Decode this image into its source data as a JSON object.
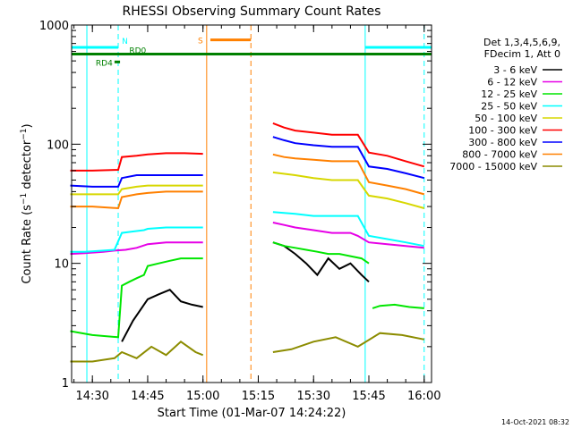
{
  "chart_data": {
    "type": "line",
    "title": "RHESSI Observing Summary Count Rates",
    "xlabel": "Start Time (01-Mar-07 14:24:22)",
    "ylabel_main": "Count Rate (s",
    "ylabel_sup": "−1",
    "ylabel_mid": " detector",
    "ylabel_end": ")",
    "yscale": "log",
    "ylim": [
      1,
      1000
    ],
    "xlim": [
      "14:24:22",
      "16:02:00"
    ],
    "x_ticks": [
      "14:30",
      "14:45",
      "15:00",
      "15:15",
      "15:30",
      "15:45",
      "16:00"
    ],
    "y_ticks": [
      {
        "value": 1,
        "label": "1"
      },
      {
        "value": 10,
        "label": "10"
      },
      {
        "value": 100,
        "label": "100"
      },
      {
        "value": 1000,
        "label": "1000"
      }
    ],
    "legend_header": [
      "Det 1,3,4,5,6,9,",
      "FDecim 1, Att 0"
    ],
    "legend_position": "outside-right",
    "series": [
      {
        "name": "3 - 6 keV",
        "color": "#000000",
        "segments": [
          {
            "x": [
              "14:38",
              "14:41",
              "14:44",
              "14:45",
              "14:48",
              "14:51",
              "14:54",
              "14:57",
              "15:00"
            ],
            "y": [
              2.2,
              3.3,
              4.5,
              5.0,
              5.5,
              6.0,
              4.8,
              4.5,
              4.3
            ]
          },
          {
            "x": [
              "15:19",
              "15:22",
              "15:25",
              "15:28",
              "15:31",
              "15:34",
              "15:37",
              "15:40",
              "15:43",
              "15:45"
            ],
            "y": [
              15,
              14,
              12,
              10,
              8,
              11,
              9,
              10,
              8,
              7
            ]
          }
        ]
      },
      {
        "name": "6 - 12 keV",
        "color": "#e600e6",
        "segments": [
          {
            "x": [
              "14:24",
              "14:28",
              "14:33",
              "14:36",
              "14:39",
              "14:42",
              "14:45",
              "14:50",
              "14:55",
              "15:00"
            ],
            "y": [
              12,
              12.2,
              12.5,
              12.8,
              13,
              13.5,
              14.5,
              15,
              15,
              15
            ]
          },
          {
            "x": [
              "15:19",
              "15:22",
              "15:25",
              "15:30",
              "15:35",
              "15:40",
              "15:42",
              "15:45",
              "15:50",
              "15:55",
              "16:00"
            ],
            "y": [
              22,
              21,
              20,
              19,
              18,
              18,
              17,
              15,
              14.5,
              14,
              13.5
            ]
          }
        ]
      },
      {
        "name": "12 - 25 keV",
        "color": "#00e600",
        "segments": [
          {
            "x": [
              "14:24",
              "14:30",
              "14:37",
              "14:38",
              "14:40",
              "14:42",
              "14:44",
              "14:45",
              "14:48",
              "14:51",
              "14:54",
              "14:57",
              "15:00"
            ],
            "y": [
              2.7,
              2.5,
              2.4,
              6.5,
              7.0,
              7.5,
              8.0,
              9.5,
              10,
              10.5,
              11,
              11,
              11
            ]
          },
          {
            "x": [
              "15:19",
              "15:22",
              "15:25",
              "15:28",
              "15:31",
              "15:34",
              "15:37",
              "15:40",
              "15:43",
              "15:45"
            ],
            "y": [
              15,
              14,
              13.5,
              13,
              12.5,
              12,
              12,
              11.5,
              11,
              10
            ]
          },
          {
            "x": [
              "15:46",
              "15:48",
              "15:52",
              "15:56",
              "16:00"
            ],
            "y": [
              4.2,
              4.4,
              4.5,
              4.3,
              4.2
            ]
          }
        ]
      },
      {
        "name": "25 - 50 keV",
        "color": "#00ffff",
        "segments": [
          {
            "x": [
              "14:24",
              "14:28",
              "14:33",
              "14:36",
              "14:38",
              "14:41",
              "14:44",
              "14:45",
              "14:50",
              "14:55",
              "15:00"
            ],
            "y": [
              12.5,
              12.5,
              12.8,
              13,
              18,
              18.5,
              19,
              19.5,
              20,
              20,
              20
            ]
          },
          {
            "x": [
              "15:19",
              "15:25",
              "15:30",
              "15:35",
              "15:40",
              "15:42",
              "15:45",
              "15:50",
              "15:55",
              "16:00"
            ],
            "y": [
              27,
              26,
              25,
              25,
              25,
              25,
              17,
              16,
              15,
              14
            ]
          }
        ]
      },
      {
        "name": "50 - 100 keV",
        "color": "#d7d700",
        "segments": [
          {
            "x": [
              "14:24",
              "14:30",
              "14:37",
              "14:38",
              "14:42",
              "14:45",
              "14:50",
              "14:55",
              "15:00"
            ],
            "y": [
              38,
              38,
              38,
              42,
              44,
              45,
              45,
              45,
              45
            ]
          },
          {
            "x": [
              "15:19",
              "15:25",
              "15:30",
              "15:35",
              "15:40",
              "15:42",
              "15:45",
              "15:50",
              "15:55",
              "16:00"
            ],
            "y": [
              58,
              55,
              52,
              50,
              50,
              50,
              37,
              35,
              32,
              29
            ]
          }
        ]
      },
      {
        "name": "100 - 300 keV",
        "color": "#ff0000",
        "segments": [
          {
            "x": [
              "14:24",
              "14:30",
              "14:37",
              "14:38",
              "14:42",
              "14:45",
              "14:50",
              "14:55",
              "15:00"
            ],
            "y": [
              60,
              60,
              61,
              78,
              80,
              82,
              84,
              84,
              83
            ]
          },
          {
            "x": [
              "15:19",
              "15:22",
              "15:25",
              "15:30",
              "15:35",
              "15:40",
              "15:42",
              "15:45",
              "15:50",
              "15:55",
              "16:00"
            ],
            "y": [
              150,
              138,
              130,
              125,
              120,
              120,
              120,
              85,
              80,
              72,
              65
            ]
          }
        ]
      },
      {
        "name": "300 - 800 keV",
        "color": "#0000ff",
        "segments": [
          {
            "x": [
              "14:24",
              "14:30",
              "14:37",
              "14:38",
              "14:42",
              "14:45",
              "14:50",
              "14:55",
              "15:00"
            ],
            "y": [
              45,
              44,
              44,
              52,
              55,
              55,
              55,
              55,
              55
            ]
          },
          {
            "x": [
              "15:19",
              "15:22",
              "15:25",
              "15:30",
              "15:35",
              "15:40",
              "15:42",
              "15:45",
              "15:50",
              "15:55",
              "16:00"
            ],
            "y": [
              115,
              108,
              102,
              98,
              95,
              95,
              95,
              65,
              62,
              57,
              52
            ]
          }
        ]
      },
      {
        "name": "800 - 7000 keV",
        "color": "#ff8000",
        "segments": [
          {
            "x": [
              "14:24",
              "14:30",
              "14:37",
              "14:38",
              "14:42",
              "14:45",
              "14:50",
              "14:55",
              "15:00"
            ],
            "y": [
              30,
              30,
              29,
              36,
              38,
              39,
              40,
              40,
              40
            ]
          },
          {
            "x": [
              "15:19",
              "15:22",
              "15:25",
              "15:30",
              "15:35",
              "15:40",
              "15:42",
              "15:45",
              "15:50",
              "15:55",
              "16:00"
            ],
            "y": [
              82,
              78,
              76,
              74,
              72,
              72,
              72,
              48,
              45,
              42,
              38
            ]
          }
        ]
      },
      {
        "name": "7000 - 15000 keV",
        "color": "#8c8c00",
        "segments": [
          {
            "x": [
              "14:24",
              "14:30",
              "14:36",
              "14:38",
              "14:42",
              "14:46",
              "14:50",
              "14:54",
              "14:58",
              "15:00"
            ],
            "y": [
              1.5,
              1.5,
              1.6,
              1.8,
              1.6,
              2.0,
              1.7,
              2.2,
              1.8,
              1.7
            ]
          },
          {
            "x": [
              "15:19",
              "15:24",
              "15:30",
              "15:36",
              "15:42",
              "15:48",
              "15:54",
              "16:00"
            ],
            "y": [
              1.8,
              1.9,
              2.2,
              2.4,
              2.0,
              2.6,
              2.5,
              2.3
            ]
          }
        ]
      }
    ],
    "flag_bars": [
      {
        "label": "N",
        "color": "#00ffff",
        "y": 650,
        "segments": [
          [
            "14:24:22",
            "14:37"
          ],
          [
            "15:44",
            "16:02"
          ]
        ]
      },
      {
        "label": "S",
        "color": "#ff8000",
        "y": 750,
        "segments": [
          [
            "15:02",
            "15:13"
          ]
        ]
      },
      {
        "label": "RD0",
        "color": "#008000",
        "y": 570,
        "segments": [
          [
            "14:24:22",
            "16:02"
          ]
        ]
      },
      {
        "label": "RD4",
        "color": "#008000",
        "y": 490,
        "segments": [
          [
            "14:36",
            "14:37:30"
          ]
        ]
      }
    ],
    "vertical_markers": [
      {
        "x": "14:28:30",
        "color": "#00ffff",
        "style": "solid"
      },
      {
        "x": "14:37",
        "color": "#00ffff",
        "style": "dashed"
      },
      {
        "x": "15:44",
        "color": "#00ffff",
        "style": "solid"
      },
      {
        "x": "16:00",
        "color": "#00ffff",
        "style": "dashed"
      },
      {
        "x": "15:01",
        "color": "#ff8000",
        "style": "solid"
      },
      {
        "x": "15:13",
        "color": "#ff8000",
        "style": "dashed"
      }
    ],
    "timestamp": "14-Oct-2021 08:32"
  }
}
